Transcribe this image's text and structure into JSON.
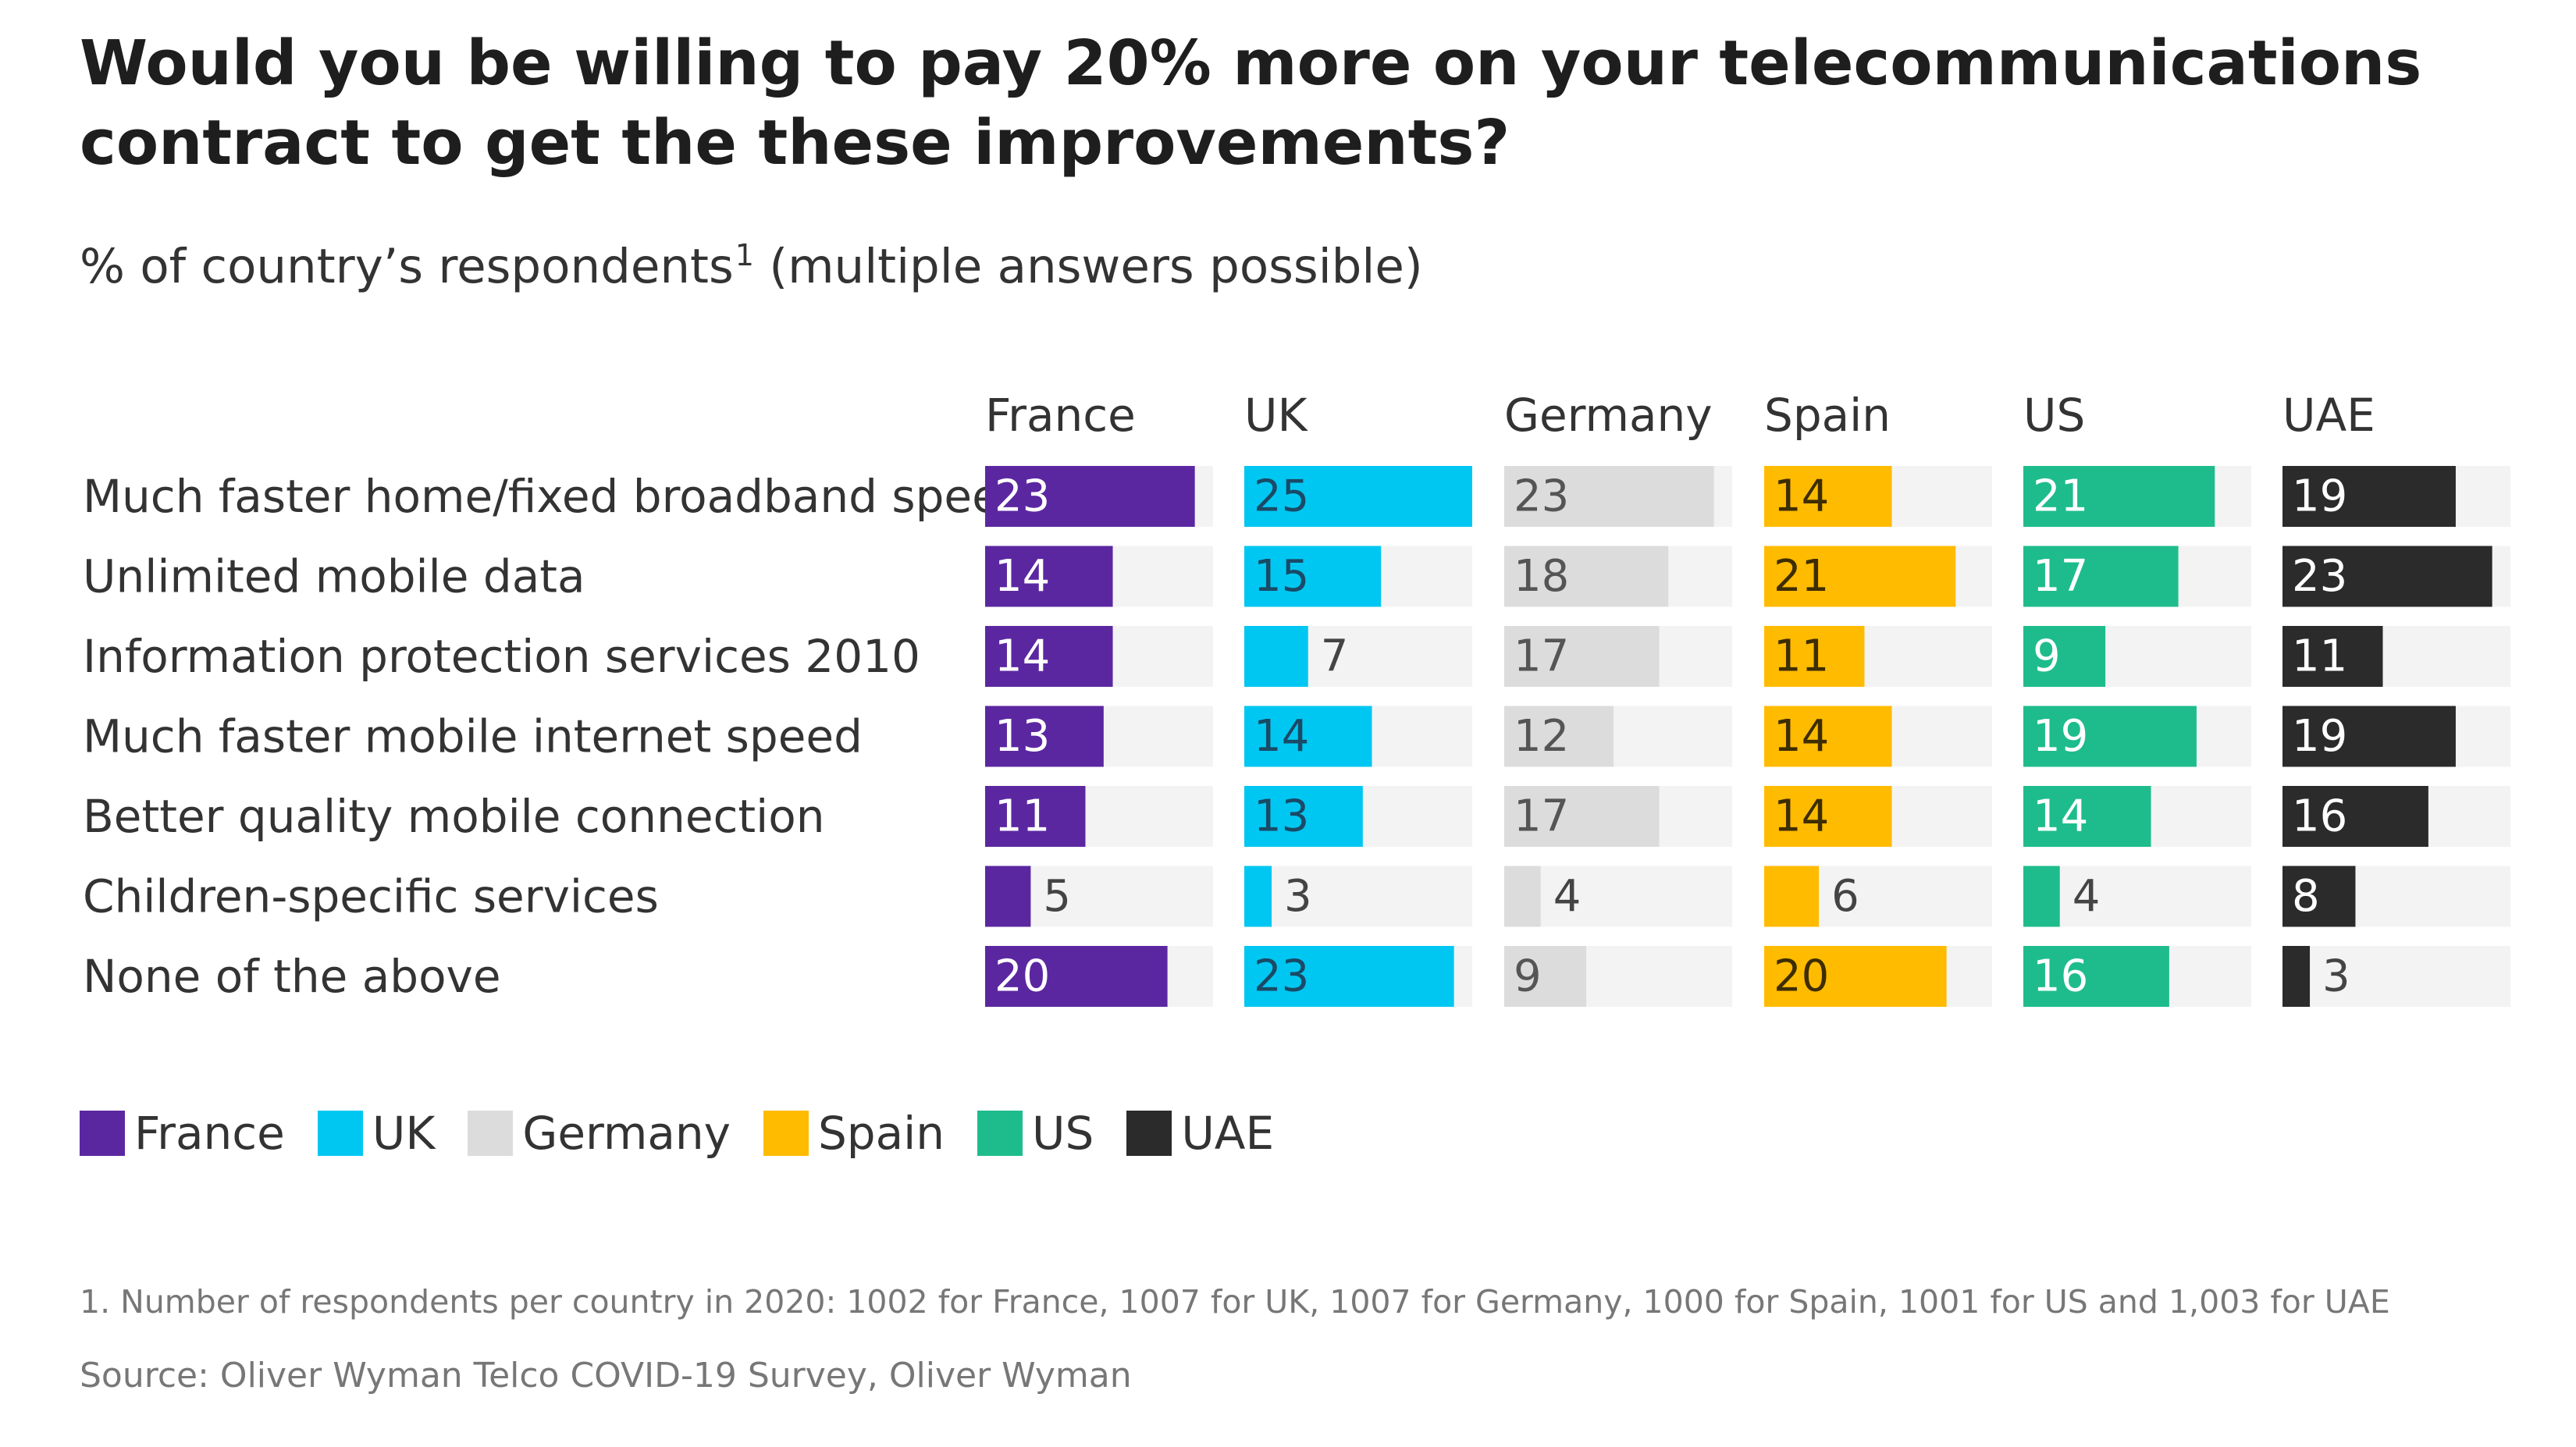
{
  "title": "Would you be willing to pay 20% more on your telecommunications contract to get the these improvements?",
  "subtitle": "% of country’s respondents",
  "subtitle_sup": "1",
  "subtitle_suffix": " (multiple answers possible)",
  "footnote": "1. Number of respondents per country in 2020: 1002 for France, 1007 for UK, 1007 for Germany, 1000 for Spain, 1001 for US and 1,003 for UAE",
  "source": "Source: Oliver Wyman Telco COVID-19 Survey, Oliver Wyman",
  "chart_data": {
    "type": "bar",
    "orientation": "horizontal",
    "layout": "small-multiples",
    "categories": [
      "Much faster home/fixed broadband speed",
      "Unlimited mobile data",
      "Information protection services 2010",
      "Much faster mobile internet speed",
      "Better quality mobile connection",
      "Children-specific services",
      "None of the above"
    ],
    "xlim": [
      0,
      25
    ],
    "series": [
      {
        "name": "France",
        "color": "#5b27a1",
        "label_color": "#ffffff",
        "values": [
          23,
          14,
          14,
          13,
          11,
          5,
          20
        ]
      },
      {
        "name": "UK",
        "color": "#00c7f2",
        "label_color": "#1a4a66",
        "values": [
          25,
          15,
          7,
          14,
          13,
          3,
          23
        ]
      },
      {
        "name": "Germany",
        "color": "#dcdcdc",
        "label_color": "#555555",
        "values": [
          23,
          18,
          17,
          12,
          17,
          4,
          9
        ]
      },
      {
        "name": "Spain",
        "color": "#ffbb00",
        "label_color": "#3d2d00",
        "values": [
          14,
          21,
          11,
          14,
          14,
          6,
          20
        ]
      },
      {
        "name": "US",
        "color": "#1ebc8c",
        "label_color": "#ffffff",
        "values": [
          21,
          17,
          9,
          19,
          14,
          4,
          16
        ]
      },
      {
        "name": "UAE",
        "color": "#2b2b2b",
        "label_color": "#ffffff",
        "values": [
          19,
          23,
          11,
          19,
          16,
          8,
          3
        ]
      }
    ],
    "track_color": "#f3f3f3",
    "legend_position": "bottom-left",
    "grid": false
  }
}
